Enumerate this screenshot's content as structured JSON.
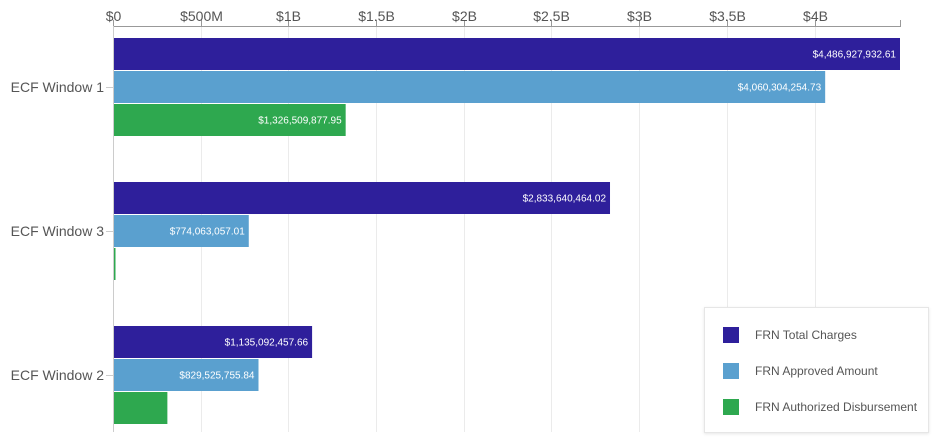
{
  "chart_data": {
    "type": "bar",
    "orientation": "horizontal",
    "categories": [
      "ECF Window 1",
      "ECF Window 3",
      "ECF Window 2"
    ],
    "series": [
      {
        "name": "FRN Total Charges",
        "color": "#2e1f9b",
        "values": [
          4486927932.61,
          2833640464.02,
          1135092457.66
        ],
        "labels": [
          "$4,486,927,932.61",
          "$2,833,640,464.02",
          "$1,135,092,457.66"
        ]
      },
      {
        "name": "FRN Approved Amount",
        "color": "#5aa0cf",
        "values": [
          4060304254.73,
          774063057.01,
          829525755.84
        ],
        "labels": [
          "$4,060,304,254.73",
          "$774,063,057.01",
          "$829,525,755.84"
        ]
      },
      {
        "name": "FRN Authorized Disbursement",
        "color": "#2ea84f",
        "values": [
          1326509877.95,
          5000000,
          310000000
        ],
        "labels": [
          "$1,326,509,877.95",
          "",
          ""
        ]
      }
    ],
    "xlim": [
      0,
      4486927932.61
    ],
    "x_ticks": [
      0,
      500000000,
      1000000000,
      1500000000,
      2000000000,
      2500000000,
      3000000000,
      3500000000,
      4000000000
    ],
    "x_tick_labels": [
      "$0",
      "$500M",
      "$1B",
      "$1.5B",
      "$2B",
      "$2.5B",
      "$3B",
      "$3.5B",
      "$4B"
    ],
    "x_axis_position": "top",
    "grid": true,
    "legend_position": "bottom-right"
  }
}
